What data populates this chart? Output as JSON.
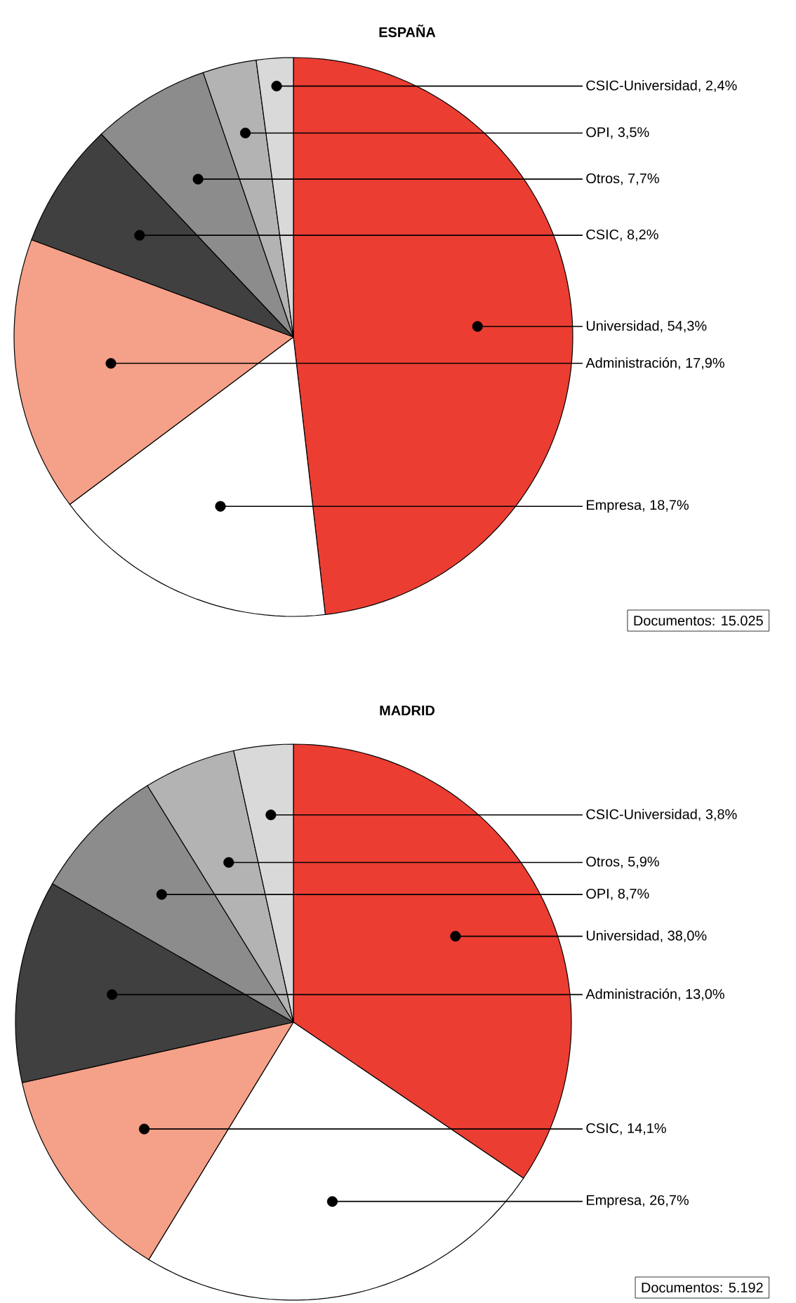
{
  "chart_data": [
    {
      "type": "pie",
      "title": "ESPAÑA",
      "categories": [
        "Universidad, 54,3%",
        "Empresa, 18,7%",
        "Administración, 17,9%",
        "CSIC, 8,2%",
        "Otros, 7,7%",
        "OPI, 3,5%",
        "CSIC-Universidad, 2,4%"
      ],
      "values": [
        54.3,
        18.7,
        17.9,
        8.2,
        7.7,
        3.5,
        2.4
      ],
      "colors": [
        "#ec3d32",
        "#ffffff",
        "#f5a088",
        "#404040",
        "#8c8c8c",
        "#b3b3b3",
        "#d9d9d9"
      ],
      "annotations": [
        "Documentos: 15.025"
      ]
    },
    {
      "type": "pie",
      "title": "MADRID",
      "categories": [
        "Universidad, 38,0%",
        "Empresa, 26,7%",
        "CSIC, 14,1%",
        "Administración, 13,0%",
        "OPI, 8,7%",
        "Otros, 5,9%",
        "CSIC-Universidad, 3,8%"
      ],
      "values": [
        38.0,
        26.7,
        14.1,
        13.0,
        8.7,
        5.9,
        3.8
      ],
      "colors": [
        "#ec3d32",
        "#ffffff",
        "#f5a088",
        "#404040",
        "#8c8c8c",
        "#b3b3b3",
        "#d9d9d9"
      ],
      "annotations": [
        "Documentos: 5.192"
      ]
    }
  ]
}
